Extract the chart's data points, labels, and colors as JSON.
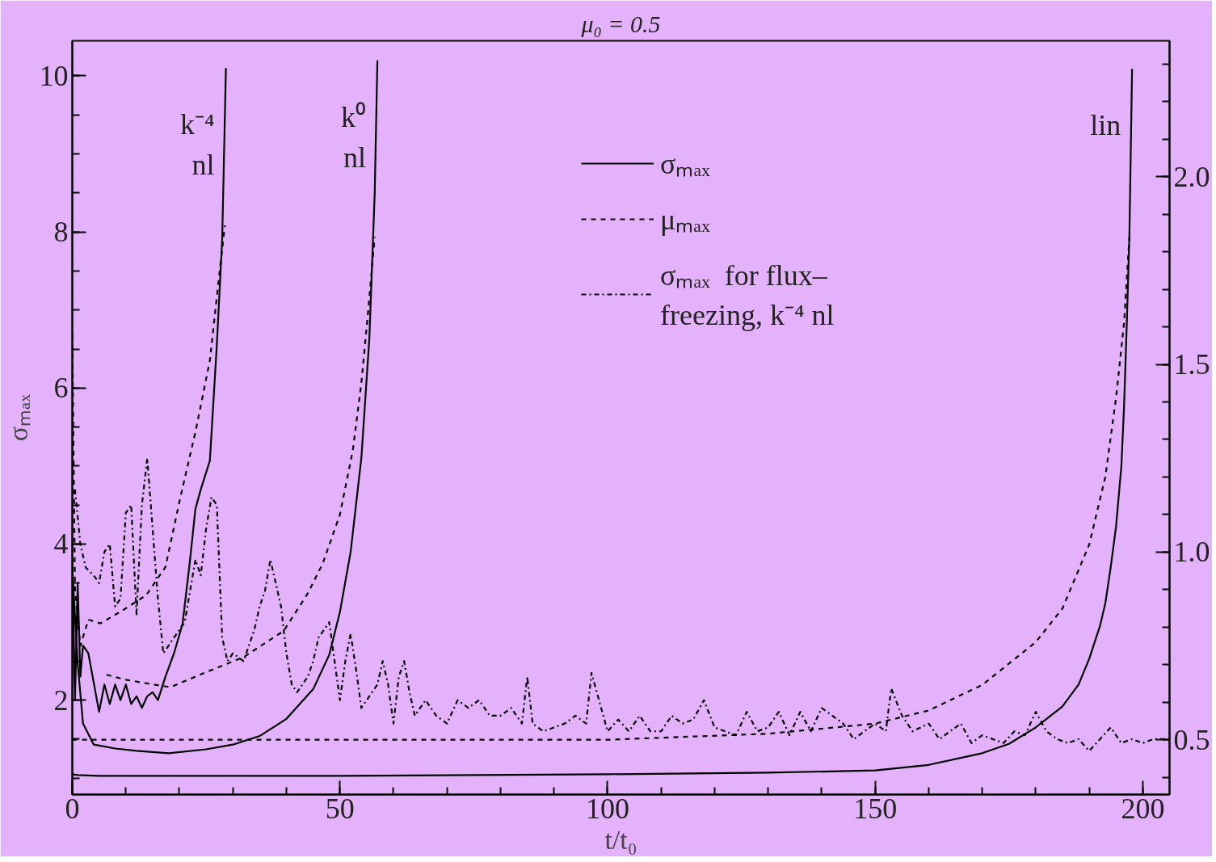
{
  "chart_data": {
    "type": "line",
    "title": "μ₀ = 0.5",
    "xlabel": "t/t₀",
    "ylabel": "σₘₐₓ",
    "xlim": [
      0,
      205
    ],
    "xticks": [
      0,
      50,
      100,
      150,
      200
    ],
    "ylim": [
      0.79,
      10.45
    ],
    "yticks": [
      2,
      4,
      6,
      8,
      10
    ],
    "y2lim": [
      0.354,
      2.362
    ],
    "y2ticks": [
      0.5,
      {
        "value": 1.0,
        "label": "1.0"
      },
      1.5,
      {
        "value": 2.0,
        "label": "2.0"
      }
    ],
    "grid": false,
    "legend": "top",
    "marker": "none",
    "annotations": [
      {
        "text": "k⁻⁴\nnl",
        "x": 28.7,
        "y": 10.1
      },
      {
        "text": "k⁰\nnl",
        "x": 57,
        "y": 10.2
      },
      {
        "text": "lin",
        "x": 198,
        "y": 10.09
      }
    ],
    "series": [
      {
        "name": "σₘₐₓ",
        "color": "#000000",
        "line_style": "solid",
        "x": [
          0,
          1,
          5,
          20,
          50,
          100,
          130,
          150,
          160,
          170,
          175,
          180,
          185,
          188,
          190,
          192,
          193,
          194,
          195,
          196,
          196.5,
          197,
          197.5,
          198
        ],
        "values": [
          1.05,
          1.04,
          1.03,
          1.03,
          1.03,
          1.05,
          1.07,
          1.1,
          1.17,
          1.32,
          1.44,
          1.65,
          1.92,
          2.2,
          2.53,
          2.95,
          3.24,
          3.7,
          4.22,
          5.0,
          5.76,
          6.8,
          7.95,
          10.09
        ]
      },
      {
        "color": "#000000",
        "line_style": "solid",
        "x": [
          0,
          1,
          2,
          4,
          8,
          12,
          18,
          25,
          30,
          35,
          40,
          45,
          48,
          50,
          52,
          54,
          55.5,
          56.5,
          57
        ],
        "values": [
          3.68,
          2.47,
          1.7,
          1.43,
          1.38,
          1.35,
          1.32,
          1.37,
          1.43,
          1.54,
          1.76,
          2.14,
          2.58,
          3.13,
          3.9,
          5.1,
          6.64,
          8.5,
          10.2
        ]
      },
      {
        "color": "#000000",
        "line_style": "solid",
        "x": [
          0,
          0.5,
          1,
          1.5,
          2,
          3,
          5,
          6,
          7,
          8,
          9,
          10,
          11,
          12,
          13,
          14,
          15,
          16,
          17.4,
          19,
          20.6,
          22,
          23,
          24,
          25.7,
          27,
          28,
          28.7
        ],
        "values": [
          3.8,
          2.0,
          3.5,
          2.3,
          2.7,
          2.6,
          1.85,
          2.2,
          1.95,
          2.2,
          2.0,
          2.2,
          1.95,
          2.05,
          1.9,
          2.05,
          2.1,
          2.0,
          2.3,
          2.6,
          2.98,
          3.8,
          4.45,
          4.7,
          5.07,
          6.55,
          7.9,
          10.1
        ]
      },
      {
        "name": "μₘₐₓ",
        "color": "#000000",
        "line_style": "dashed",
        "axis": "y2",
        "x": [
          0,
          50,
          100,
          130,
          150,
          160,
          170,
          180,
          185,
          190,
          193,
          195,
          196.5,
          197.5
        ],
        "values": [
          0.5,
          0.5,
          0.5,
          0.516,
          0.543,
          0.578,
          0.646,
          0.76,
          0.85,
          1.02,
          1.2,
          1.41,
          1.61,
          1.84
        ]
      },
      {
        "color": "#000000",
        "line_style": "dashed",
        "axis": "y2",
        "x": [
          6.4,
          10,
          14,
          18.3,
          25,
          32,
          39.5,
          44,
          46.8,
          50,
          52.4,
          54,
          55.2,
          56.5
        ],
        "values": [
          0.673,
          0.66,
          0.65,
          0.64,
          0.68,
          0.72,
          0.79,
          0.89,
          0.97,
          1.1,
          1.27,
          1.45,
          1.63,
          1.84
        ]
      },
      {
        "color": "#000000",
        "line_style": "dashed",
        "axis": "y2",
        "x": [
          0,
          0.5,
          1.5,
          3,
          5.3,
          10,
          13.8,
          17.4,
          20.1,
          23,
          25.7,
          27,
          28.5
        ],
        "values": [
          1.58,
          0.9,
          0.75,
          0.82,
          0.81,
          0.85,
          0.885,
          0.96,
          1.14,
          1.32,
          1.51,
          1.68,
          1.87
        ]
      },
      {
        "name": "σₘₐₓ  for flux–\nfreezing, k⁻⁴ nl",
        "color": "#000000",
        "line_style": "dashdot",
        "x": [
          0.5,
          1.5,
          2.5,
          4,
          5,
          6,
          7,
          8,
          9,
          10,
          11,
          12,
          13,
          14,
          15,
          16,
          17,
          18,
          19,
          20,
          21,
          22,
          23,
          24,
          25,
          26,
          27,
          28,
          29,
          30,
          32,
          34,
          35,
          36,
          37,
          38,
          39,
          40,
          41,
          42,
          44,
          45,
          46,
          47,
          48,
          49,
          50,
          51,
          52,
          53,
          54,
          55,
          57,
          58,
          59,
          60,
          61,
          62,
          63,
          64,
          66,
          68,
          70,
          72,
          74,
          76,
          78,
          80,
          82,
          84,
          85,
          86,
          88,
          90,
          92,
          94,
          96,
          97,
          98,
          100,
          102,
          104,
          106,
          108,
          110,
          112,
          114,
          116,
          118,
          120,
          122,
          124,
          126,
          128,
          130,
          132,
          134,
          136,
          138,
          140,
          142,
          144,
          146,
          148,
          150,
          152,
          153,
          155,
          157,
          160,
          162,
          164,
          166,
          168,
          170,
          172,
          174,
          176,
          178,
          180,
          182,
          184,
          186,
          188,
          190,
          192,
          194,
          196,
          198,
          200,
          202,
          205
        ],
        "values": [
          4.7,
          4.0,
          3.7,
          3.6,
          3.5,
          3.9,
          4.0,
          3.2,
          3.3,
          4.4,
          4.5,
          3.1,
          4.5,
          5.1,
          4.2,
          3.3,
          2.6,
          2.7,
          2.8,
          2.9,
          3.0,
          3.4,
          3.8,
          3.6,
          4.2,
          4.6,
          4.5,
          2.8,
          2.5,
          2.6,
          2.5,
          2.9,
          3.2,
          3.4,
          3.8,
          3.5,
          3.2,
          2.6,
          2.2,
          2.1,
          2.3,
          2.5,
          2.8,
          2.9,
          3.0,
          2.5,
          2.0,
          2.5,
          2.85,
          2.4,
          1.9,
          2.0,
          2.2,
          2.5,
          2.2,
          1.7,
          2.3,
          2.5,
          2.1,
          1.8,
          2.0,
          1.8,
          1.7,
          2.0,
          1.9,
          2.0,
          1.8,
          1.8,
          1.9,
          1.7,
          2.3,
          1.7,
          1.6,
          1.65,
          1.7,
          1.8,
          1.7,
          2.35,
          2.1,
          1.6,
          1.75,
          1.6,
          1.8,
          1.6,
          1.6,
          1.8,
          1.7,
          1.75,
          2.0,
          1.65,
          1.6,
          1.55,
          1.85,
          1.6,
          1.65,
          1.85,
          1.55,
          1.85,
          1.6,
          1.9,
          1.8,
          1.7,
          1.5,
          1.6,
          1.7,
          1.6,
          2.15,
          1.8,
          1.6,
          1.7,
          1.5,
          1.6,
          1.7,
          1.45,
          1.55,
          1.5,
          1.45,
          1.6,
          1.55,
          1.85,
          1.6,
          1.5,
          1.45,
          1.5,
          1.35,
          1.5,
          1.65,
          1.45,
          1.5,
          1.45,
          1.5,
          1.5
        ]
      }
    ]
  }
}
